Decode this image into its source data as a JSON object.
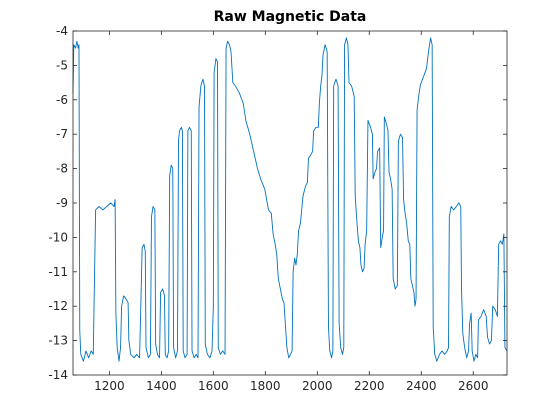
{
  "chart_data": {
    "type": "line",
    "title": "Raw Magnetic Data",
    "xlabel": "",
    "ylabel": "",
    "xlim": [
      1060,
      2730
    ],
    "ylim": [
      -14,
      -4
    ],
    "xticks": [
      1200,
      1400,
      1600,
      1800,
      2000,
      2200,
      2400,
      2600
    ],
    "yticks": [
      -4,
      -5,
      -6,
      -7,
      -8,
      -9,
      -10,
      -11,
      -12,
      -13,
      -14
    ],
    "grid": false,
    "legend": "none",
    "series": [
      {
        "color": "#0072bd",
        "points": [
          [
            1060,
            -5.8
          ],
          [
            1063,
            -4.4
          ],
          [
            1070,
            -4.5
          ],
          [
            1075,
            -4.3
          ],
          [
            1080,
            -4.5
          ],
          [
            1083,
            -4.4
          ],
          [
            1086,
            -12.7
          ],
          [
            1090,
            -13.4
          ],
          [
            1100,
            -13.6
          ],
          [
            1110,
            -13.3
          ],
          [
            1120,
            -13.5
          ],
          [
            1130,
            -13.3
          ],
          [
            1138,
            -13.4
          ],
          [
            1142,
            -11.5
          ],
          [
            1147,
            -9.2
          ],
          [
            1160,
            -9.1
          ],
          [
            1175,
            -9.2
          ],
          [
            1190,
            -9.1
          ],
          [
            1205,
            -9.0
          ],
          [
            1218,
            -9.1
          ],
          [
            1222,
            -8.9
          ],
          [
            1225,
            -12.2
          ],
          [
            1230,
            -13.2
          ],
          [
            1237,
            -13.6
          ],
          [
            1243,
            -13.2
          ],
          [
            1247,
            -12.0
          ],
          [
            1255,
            -11.7
          ],
          [
            1265,
            -11.8
          ],
          [
            1272,
            -11.9
          ],
          [
            1275,
            -13.0
          ],
          [
            1282,
            -13.4
          ],
          [
            1295,
            -13.5
          ],
          [
            1305,
            -13.4
          ],
          [
            1316,
            -13.5
          ],
          [
            1320,
            -12.3
          ],
          [
            1326,
            -10.3
          ],
          [
            1333,
            -10.2
          ],
          [
            1338,
            -10.4
          ],
          [
            1341,
            -13.2
          ],
          [
            1350,
            -13.5
          ],
          [
            1358,
            -13.4
          ],
          [
            1362,
            -9.4
          ],
          [
            1368,
            -9.1
          ],
          [
            1375,
            -9.2
          ],
          [
            1378,
            -13.1
          ],
          [
            1385,
            -13.4
          ],
          [
            1393,
            -13.5
          ],
          [
            1397,
            -11.6
          ],
          [
            1405,
            -11.5
          ],
          [
            1412,
            -11.7
          ],
          [
            1415,
            -13.4
          ],
          [
            1422,
            -13.5
          ],
          [
            1428,
            -13.3
          ],
          [
            1432,
            -8.2
          ],
          [
            1438,
            -7.9
          ],
          [
            1444,
            -8.0
          ],
          [
            1447,
            -13.2
          ],
          [
            1455,
            -13.5
          ],
          [
            1462,
            -13.3
          ],
          [
            1466,
            -7.2
          ],
          [
            1470,
            -6.9
          ],
          [
            1477,
            -6.8
          ],
          [
            1481,
            -6.9
          ],
          [
            1484,
            -13.3
          ],
          [
            1491,
            -13.5
          ],
          [
            1499,
            -13.4
          ],
          [
            1502,
            -6.9
          ],
          [
            1508,
            -6.8
          ],
          [
            1515,
            -6.9
          ],
          [
            1518,
            -13.3
          ],
          [
            1526,
            -13.5
          ],
          [
            1534,
            -13.4
          ],
          [
            1541,
            -13.5
          ],
          [
            1545,
            -6.2
          ],
          [
            1552,
            -5.6
          ],
          [
            1560,
            -5.4
          ],
          [
            1566,
            -5.6
          ],
          [
            1569,
            -13.1
          ],
          [
            1577,
            -13.4
          ],
          [
            1587,
            -13.5
          ],
          [
            1595,
            -13.3
          ],
          [
            1600,
            -12.0
          ],
          [
            1603,
            -5.2
          ],
          [
            1610,
            -4.8
          ],
          [
            1616,
            -4.9
          ],
          [
            1619,
            -13.2
          ],
          [
            1627,
            -13.4
          ],
          [
            1636,
            -13.3
          ],
          [
            1645,
            -13.4
          ],
          [
            1649,
            -4.5
          ],
          [
            1655,
            -4.3
          ],
          [
            1662,
            -4.4
          ],
          [
            1668,
            -4.6
          ],
          [
            1675,
            -5.5
          ],
          [
            1685,
            -5.6
          ],
          [
            1700,
            -5.8
          ],
          [
            1715,
            -6.1
          ],
          [
            1725,
            -6.6
          ],
          [
            1740,
            -7.0
          ],
          [
            1755,
            -7.5
          ],
          [
            1770,
            -8.0
          ],
          [
            1782,
            -8.3
          ],
          [
            1798,
            -8.6
          ],
          [
            1812,
            -9.2
          ],
          [
            1823,
            -9.3
          ],
          [
            1830,
            -9.9
          ],
          [
            1838,
            -10.2
          ],
          [
            1844,
            -10.5
          ],
          [
            1850,
            -11.2
          ],
          [
            1858,
            -11.5
          ],
          [
            1866,
            -11.8
          ],
          [
            1872,
            -11.9
          ],
          [
            1877,
            -12.5
          ],
          [
            1883,
            -13.2
          ],
          [
            1890,
            -13.5
          ],
          [
            1897,
            -13.4
          ],
          [
            1903,
            -13.3
          ],
          [
            1907,
            -11.0
          ],
          [
            1913,
            -10.6
          ],
          [
            1918,
            -10.8
          ],
          [
            1923,
            -10.5
          ],
          [
            1928,
            -9.8
          ],
          [
            1935,
            -9.6
          ],
          [
            1940,
            -9.2
          ],
          [
            1945,
            -8.8
          ],
          [
            1955,
            -8.5
          ],
          [
            1962,
            -8.4
          ],
          [
            1966,
            -7.7
          ],
          [
            1975,
            -7.6
          ],
          [
            1982,
            -7.5
          ],
          [
            1986,
            -6.9
          ],
          [
            1995,
            -6.8
          ],
          [
            2004,
            -6.8
          ],
          [
            2008,
            -6.1
          ],
          [
            2013,
            -5.6
          ],
          [
            2018,
            -5.3
          ],
          [
            2022,
            -4.7
          ],
          [
            2030,
            -4.4
          ],
          [
            2038,
            -4.6
          ],
          [
            2043,
            -12.6
          ],
          [
            2048,
            -13.3
          ],
          [
            2055,
            -13.5
          ],
          [
            2060,
            -13.3
          ],
          [
            2063,
            -5.6
          ],
          [
            2072,
            -5.4
          ],
          [
            2080,
            -5.6
          ],
          [
            2084,
            -12.5
          ],
          [
            2090,
            -13.2
          ],
          [
            2097,
            -13.4
          ],
          [
            2102,
            -13.2
          ],
          [
            2105,
            -4.4
          ],
          [
            2112,
            -4.2
          ],
          [
            2118,
            -4.4
          ],
          [
            2122,
            -5.5
          ],
          [
            2132,
            -5.6
          ],
          [
            2142,
            -5.9
          ],
          [
            2146,
            -8.8
          ],
          [
            2152,
            -9.5
          ],
          [
            2158,
            -10.1
          ],
          [
            2164,
            -10.3
          ],
          [
            2168,
            -10.8
          ],
          [
            2174,
            -11.0
          ],
          [
            2180,
            -10.9
          ],
          [
            2184,
            -10.2
          ],
          [
            2190,
            -9.8
          ],
          [
            2195,
            -6.6
          ],
          [
            2205,
            -6.8
          ],
          [
            2212,
            -7.0
          ],
          [
            2215,
            -8.3
          ],
          [
            2222,
            -8.1
          ],
          [
            2228,
            -8.0
          ],
          [
            2232,
            -7.5
          ],
          [
            2240,
            -7.4
          ],
          [
            2244,
            -10.3
          ],
          [
            2250,
            -10.0
          ],
          [
            2255,
            -9.8
          ],
          [
            2258,
            -6.5
          ],
          [
            2266,
            -6.7
          ],
          [
            2272,
            -6.9
          ],
          [
            2276,
            -8.1
          ],
          [
            2282,
            -8.3
          ],
          [
            2288,
            -8.6
          ],
          [
            2292,
            -11.2
          ],
          [
            2300,
            -11.5
          ],
          [
            2308,
            -11.4
          ],
          [
            2312,
            -7.2
          ],
          [
            2320,
            -7.0
          ],
          [
            2328,
            -7.1
          ],
          [
            2332,
            -8.9
          ],
          [
            2338,
            -9.3
          ],
          [
            2344,
            -9.6
          ],
          [
            2350,
            -10.1
          ],
          [
            2356,
            -10.2
          ],
          [
            2360,
            -11.2
          ],
          [
            2366,
            -11.4
          ],
          [
            2372,
            -11.6
          ],
          [
            2376,
            -12.0
          ],
          [
            2380,
            -11.8
          ],
          [
            2384,
            -6.3
          ],
          [
            2390,
            -5.9
          ],
          [
            2396,
            -5.6
          ],
          [
            2400,
            -5.5
          ],
          [
            2410,
            -5.3
          ],
          [
            2420,
            -5.1
          ],
          [
            2428,
            -4.6
          ],
          [
            2436,
            -4.2
          ],
          [
            2442,
            -4.4
          ],
          [
            2446,
            -12.6
          ],
          [
            2452,
            -13.4
          ],
          [
            2460,
            -13.6
          ],
          [
            2470,
            -13.4
          ],
          [
            2480,
            -13.3
          ],
          [
            2490,
            -13.4
          ],
          [
            2500,
            -13.3
          ],
          [
            2505,
            -13.2
          ],
          [
            2508,
            -9.4
          ],
          [
            2515,
            -9.1
          ],
          [
            2525,
            -9.2
          ],
          [
            2535,
            -9.1
          ],
          [
            2545,
            -9.0
          ],
          [
            2552,
            -9.1
          ],
          [
            2555,
            -11.5
          ],
          [
            2560,
            -12.8
          ],
          [
            2567,
            -13.2
          ],
          [
            2575,
            -13.5
          ],
          [
            2582,
            -13.3
          ],
          [
            2586,
            -12.5
          ],
          [
            2592,
            -12.2
          ],
          [
            2596,
            -13.3
          ],
          [
            2603,
            -13.6
          ],
          [
            2610,
            -13.4
          ],
          [
            2617,
            -13.5
          ],
          [
            2620,
            -12.4
          ],
          [
            2630,
            -12.3
          ],
          [
            2640,
            -12.1
          ],
          [
            2650,
            -12.3
          ],
          [
            2655,
            -12.9
          ],
          [
            2663,
            -13.1
          ],
          [
            2670,
            -13.0
          ],
          [
            2675,
            -12.0
          ],
          [
            2685,
            -12.1
          ],
          [
            2693,
            -12.3
          ],
          [
            2698,
            -10.2
          ],
          [
            2705,
            -10.1
          ],
          [
            2712,
            -10.2
          ],
          [
            2718,
            -9.9
          ],
          [
            2722,
            -13.2
          ],
          [
            2730,
            -13.3
          ]
        ]
      }
    ]
  }
}
